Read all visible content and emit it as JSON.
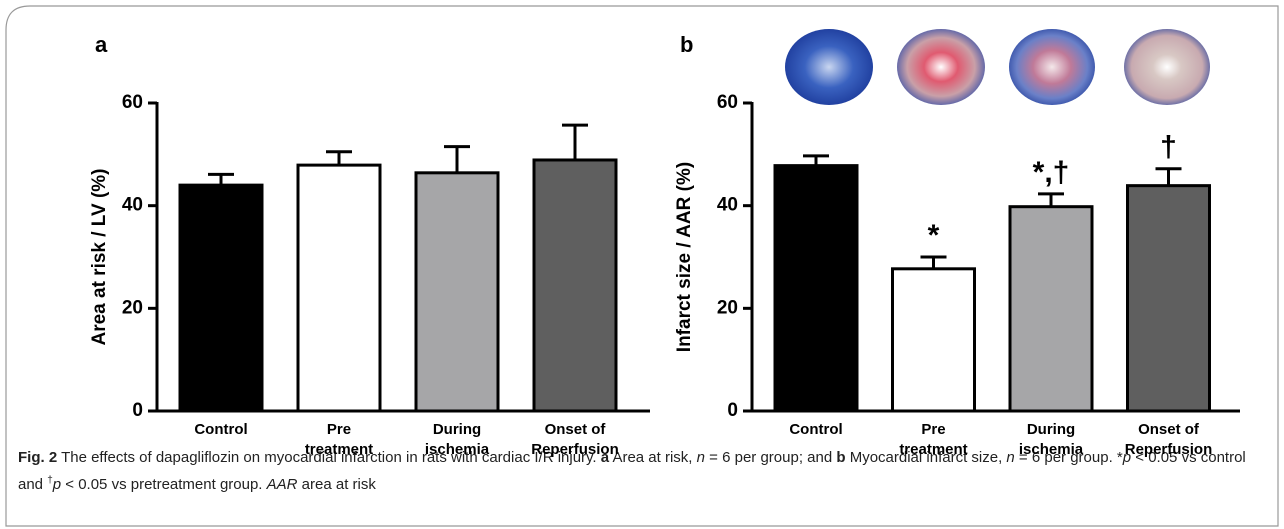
{
  "caption": [
    "Fig. 2",
    " The effects of dapagliflozin on myocardial infarction in rats with cardiac I/R injury. ",
    "a",
    " Area at risk, ",
    "n",
    " = 6 per group; and ",
    "b",
    " Myocardial infarct size, ",
    "n",
    " = 6 per group. *",
    "p",
    " < 0.05 vs control and ",
    "†",
    "p",
    " < 0.05 vs pretreatment group. ",
    "AAR",
    " area at risk"
  ],
  "chart_data": [
    {
      "type": "bar",
      "panel_label": "a",
      "y_label": "Area at risk / LV (%)",
      "categories": [
        "Control",
        "Pre\ntreatment",
        "During\nischemia",
        "Onset of\nReperfusion"
      ],
      "values": [
        44,
        47.9,
        46.4,
        48.9
      ],
      "errors": [
        2.1,
        2.6,
        5.1,
        6.8
      ],
      "colors": [
        "#000000",
        "#ffffff",
        "#a6a6a8",
        "#5f5f5f"
      ],
      "ylim": [
        0,
        60
      ],
      "yticks": [
        0,
        20,
        40,
        60
      ]
    },
    {
      "type": "bar",
      "panel_label": "b",
      "y_label": "Infarct size / AAR (%)",
      "categories": [
        "Control",
        "Pre\ntreatment",
        "During\nischemia",
        "Onset of\nReperfusion"
      ],
      "values": [
        47.8,
        27.7,
        39.8,
        43.9
      ],
      "errors": [
        1.9,
        2.3,
        2.5,
        3.3
      ],
      "annotations": [
        null,
        "*",
        "*,†",
        "†"
      ],
      "colors": [
        "#000000",
        "#ffffff",
        "#a6a6a8",
        "#5f5f5f"
      ],
      "ylim": [
        0,
        60
      ],
      "yticks": [
        0,
        20,
        40,
        60
      ]
    }
  ]
}
